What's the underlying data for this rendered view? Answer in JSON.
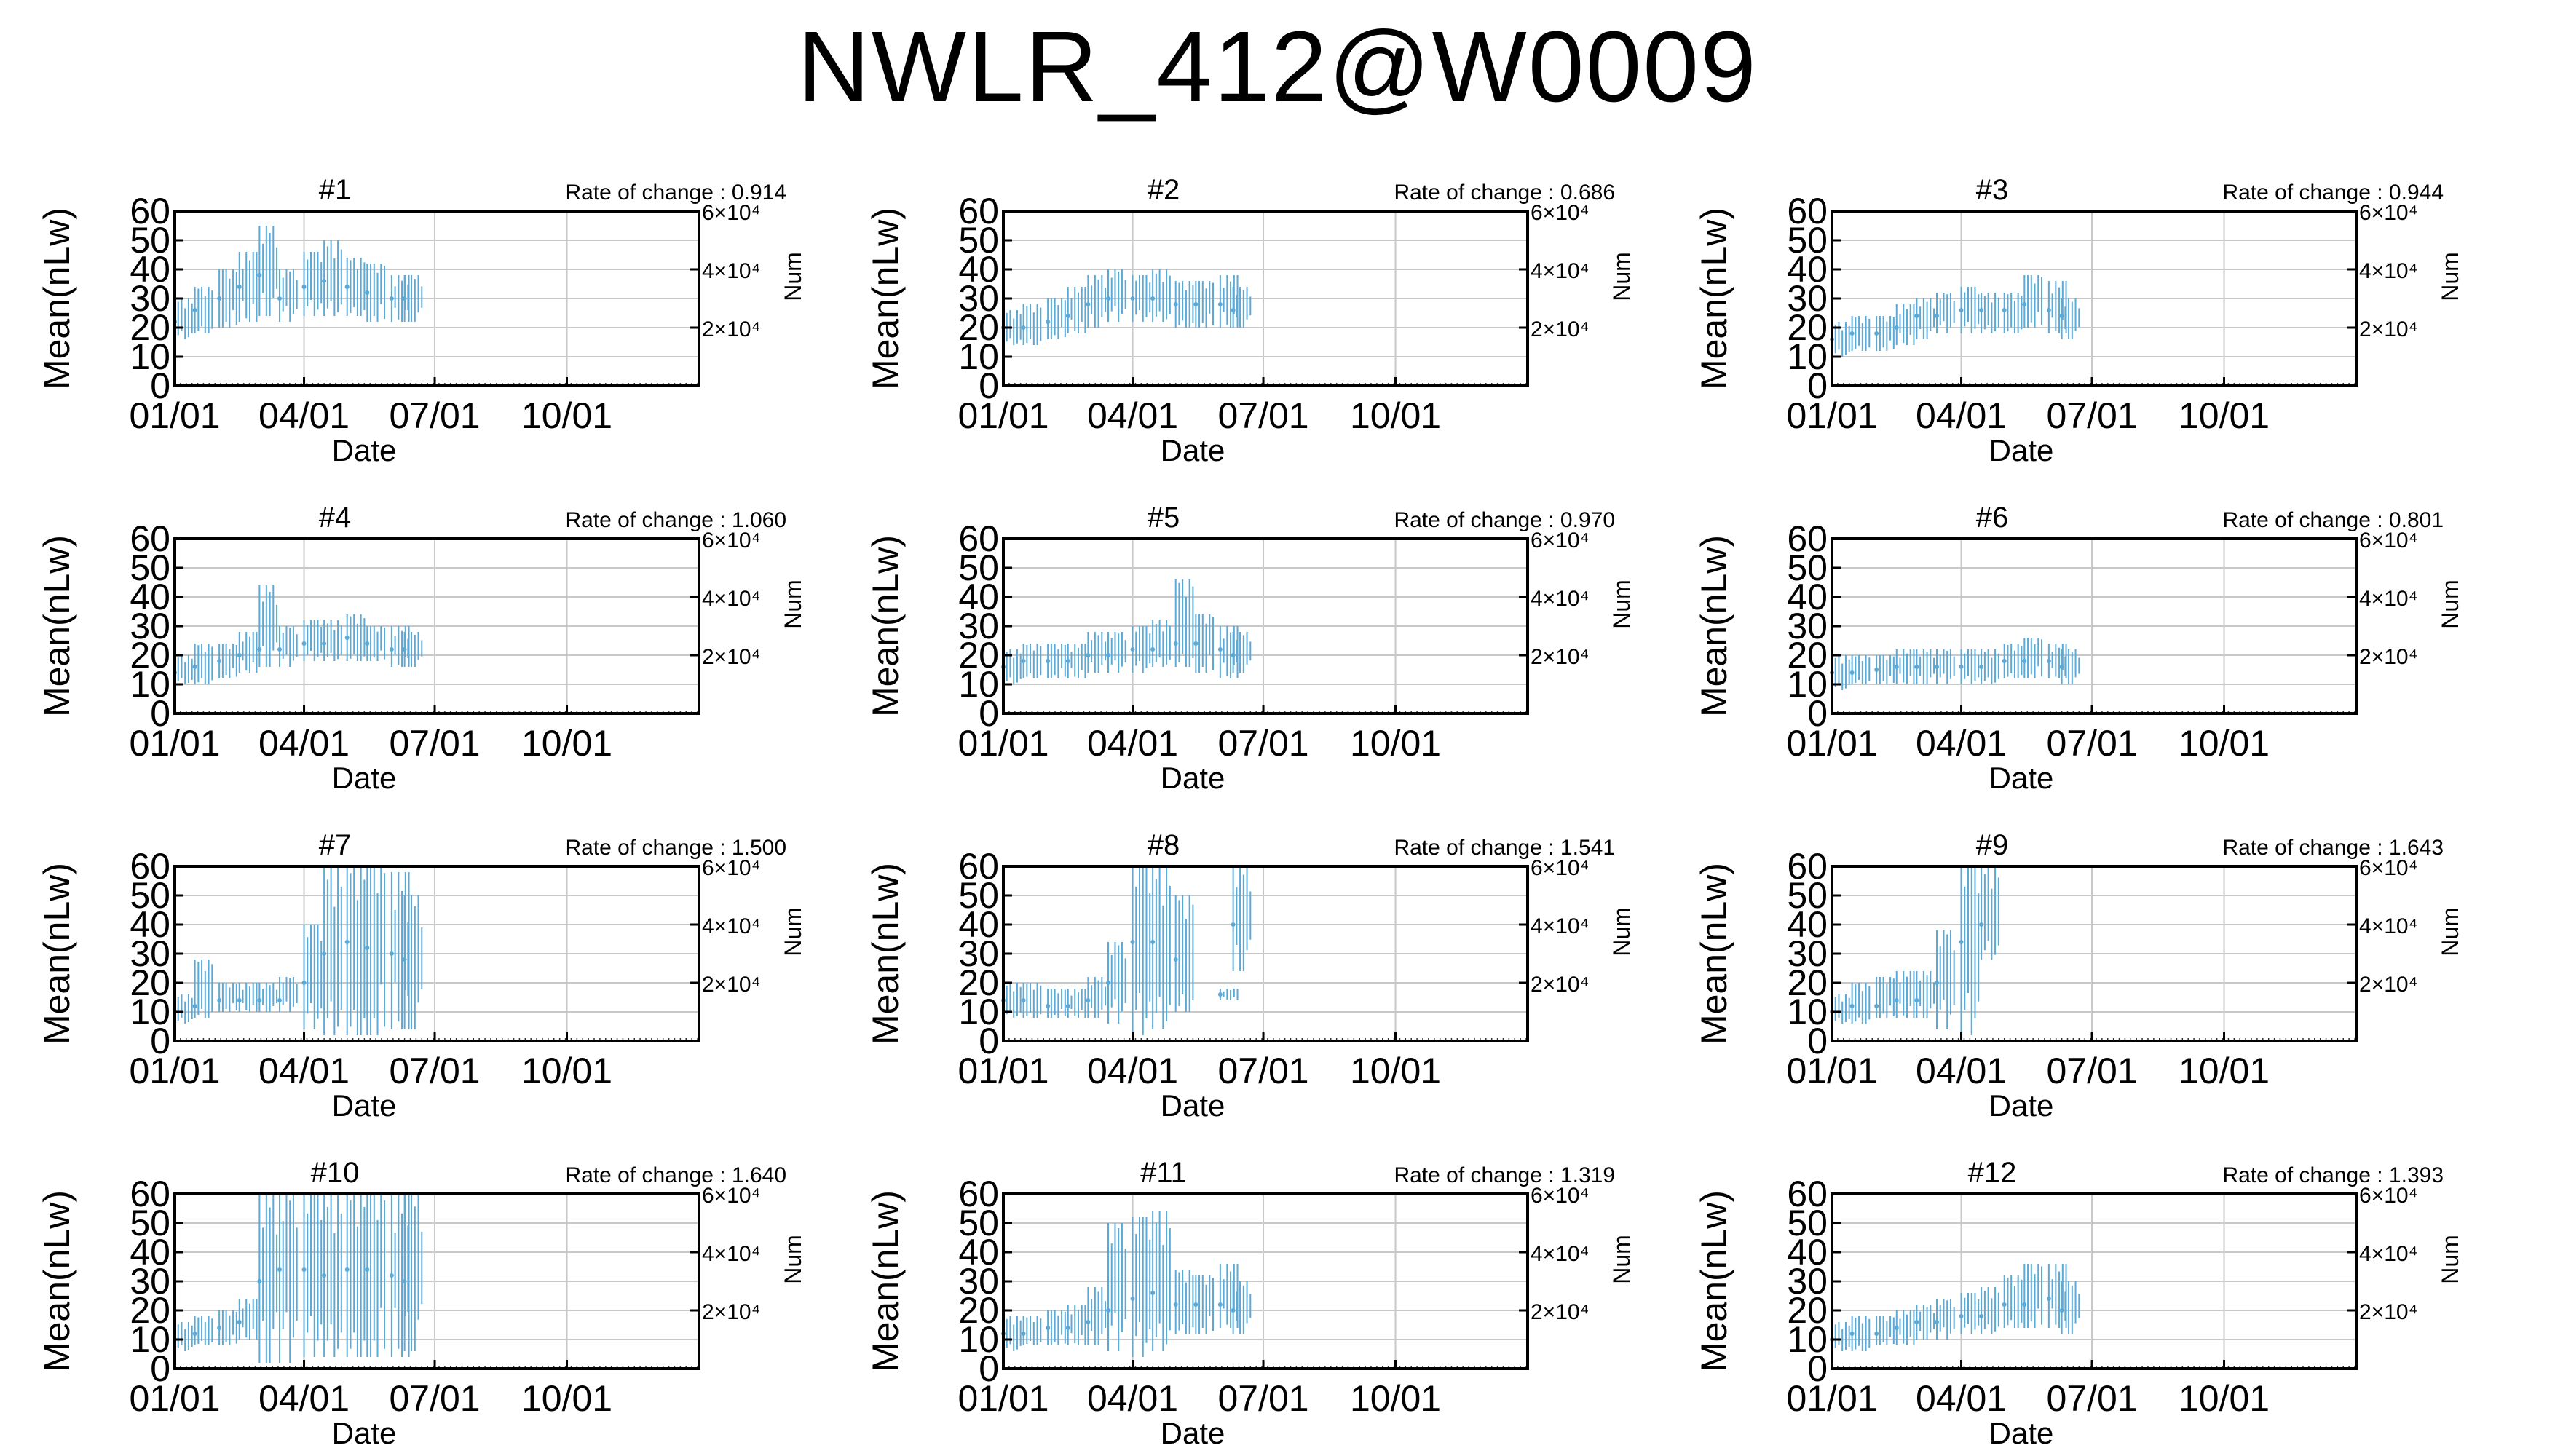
{
  "page": {
    "title": "NWLR_412@W0009"
  },
  "colors": {
    "data": "#5aa9d6",
    "grid": "#c8c8c8",
    "frame": "#000000"
  },
  "chart_data": [
    {
      "type": "scatter",
      "title": "#1",
      "rate_label": "Rate of change : 0.914",
      "xlabel": "Date",
      "ylabel": "Mean(nLw)",
      "y2label": "Num",
      "ylim": [
        0,
        60
      ],
      "y2ticks": [
        "2×10⁴",
        "4×10⁴",
        "6×10⁴"
      ],
      "xticks": [
        "01/01",
        "04/01",
        "07/01",
        "10/01"
      ],
      "grid": true,
      "x": [
        "01/01",
        "01/15",
        "02/01",
        "02/15",
        "03/01",
        "03/15",
        "04/01",
        "04/15",
        "05/01",
        "05/15",
        "06/01",
        "06/10"
      ],
      "y": [
        22,
        26,
        30,
        34,
        38,
        30,
        34,
        36,
        34,
        32,
        30,
        30
      ],
      "y_low": [
        16,
        18,
        20,
        22,
        24,
        22,
        24,
        24,
        24,
        22,
        22,
        22
      ],
      "y_high": [
        30,
        34,
        40,
        46,
        55,
        40,
        46,
        50,
        44,
        42,
        38,
        38
      ]
    },
    {
      "type": "scatter",
      "title": "#2",
      "rate_label": "Rate of change : 0.686",
      "xlabel": "Date",
      "ylabel": "Mean(nLw)",
      "y2label": "Num",
      "ylim": [
        0,
        60
      ],
      "y2ticks": [
        "2×10⁴",
        "4×10⁴",
        "6×10⁴"
      ],
      "xticks": [
        "01/01",
        "04/01",
        "07/01",
        "10/01"
      ],
      "grid": true,
      "x": [
        "01/01",
        "01/15",
        "02/01",
        "02/15",
        "03/01",
        "03/15",
        "04/01",
        "04/15",
        "05/01",
        "05/15",
        "06/01",
        "06/10"
      ],
      "y": [
        20,
        20,
        22,
        24,
        28,
        30,
        30,
        30,
        28,
        28,
        28,
        26
      ],
      "y_low": [
        14,
        14,
        16,
        18,
        20,
        22,
        22,
        22,
        20,
        20,
        20,
        20
      ],
      "y_high": [
        26,
        28,
        30,
        34,
        38,
        40,
        38,
        40,
        36,
        36,
        38,
        34
      ]
    },
    {
      "type": "scatter",
      "title": "#3",
      "rate_label": "Rate of change : 0.944",
      "xlabel": "Date",
      "ylabel": "Mean(nLw)",
      "y2label": "Num",
      "ylim": [
        0,
        60
      ],
      "y2ticks": [
        "2×10⁴",
        "4×10⁴",
        "6×10⁴"
      ],
      "xticks": [
        "01/01",
        "04/01",
        "07/01",
        "10/01"
      ],
      "grid": true,
      "x": [
        "01/01",
        "01/15",
        "02/01",
        "02/15",
        "03/01",
        "03/15",
        "04/01",
        "04/15",
        "05/01",
        "05/15",
        "06/01",
        "06/10"
      ],
      "y": [
        16,
        18,
        18,
        20,
        24,
        24,
        26,
        26,
        26,
        28,
        26,
        24
      ],
      "y_low": [
        10,
        12,
        12,
        14,
        16,
        18,
        18,
        18,
        18,
        20,
        18,
        16
      ],
      "y_high": [
        22,
        24,
        24,
        28,
        30,
        32,
        34,
        32,
        32,
        38,
        36,
        30
      ]
    },
    {
      "type": "scatter",
      "title": "#4",
      "rate_label": "Rate of change : 1.060",
      "xlabel": "Date",
      "ylabel": "Mean(nLw)",
      "y2label": "Num",
      "ylim": [
        0,
        60
      ],
      "y2ticks": [
        "2×10⁴",
        "4×10⁴",
        "6×10⁴"
      ],
      "xticks": [
        "01/01",
        "04/01",
        "07/01",
        "10/01"
      ],
      "grid": true,
      "x": [
        "01/01",
        "01/15",
        "02/01",
        "02/15",
        "03/01",
        "03/15",
        "04/01",
        "04/15",
        "05/01",
        "05/15",
        "06/01",
        "06/10"
      ],
      "y": [
        14,
        16,
        18,
        20,
        22,
        22,
        24,
        24,
        26,
        24,
        22,
        22
      ],
      "y_low": [
        10,
        10,
        12,
        14,
        16,
        16,
        18,
        18,
        18,
        18,
        16,
        16
      ],
      "y_high": [
        20,
        24,
        24,
        28,
        44,
        30,
        32,
        32,
        34,
        30,
        30,
        28
      ]
    },
    {
      "type": "scatter",
      "title": "#5",
      "rate_label": "Rate of change : 0.970",
      "xlabel": "Date",
      "ylabel": "Mean(nLw)",
      "y2label": "Num",
      "ylim": [
        0,
        60
      ],
      "y2ticks": [
        "2×10⁴",
        "4×10⁴",
        "6×10⁴"
      ],
      "xticks": [
        "01/01",
        "04/01",
        "07/01",
        "10/01"
      ],
      "grid": true,
      "x": [
        "01/01",
        "01/15",
        "02/01",
        "02/15",
        "03/01",
        "03/15",
        "04/01",
        "04/15",
        "05/01",
        "05/15",
        "06/01",
        "06/10"
      ],
      "y": [
        16,
        18,
        18,
        18,
        20,
        20,
        22,
        22,
        24,
        24,
        22,
        20
      ],
      "y_low": [
        10,
        12,
        12,
        12,
        14,
        14,
        14,
        16,
        16,
        14,
        12,
        14
      ],
      "y_high": [
        22,
        24,
        24,
        24,
        28,
        28,
        30,
        32,
        46,
        34,
        30,
        28
      ]
    },
    {
      "type": "scatter",
      "title": "#6",
      "rate_label": "Rate of change : 0.801",
      "xlabel": "Date",
      "ylabel": "Mean(nLw)",
      "y2label": "Num",
      "ylim": [
        0,
        60
      ],
      "y2ticks": [
        "2×10⁴",
        "4×10⁴",
        "6×10⁴"
      ],
      "xticks": [
        "01/01",
        "04/01",
        "07/01",
        "10/01"
      ],
      "grid": true,
      "x": [
        "01/01",
        "01/15",
        "02/01",
        "02/15",
        "03/01",
        "03/15",
        "04/01",
        "04/15",
        "05/01",
        "05/15",
        "06/01",
        "06/10"
      ],
      "y": [
        14,
        14,
        15,
        16,
        16,
        16,
        16,
        16,
        18,
        18,
        18,
        16
      ],
      "y_low": [
        8,
        10,
        10,
        10,
        10,
        10,
        10,
        10,
        12,
        12,
        12,
        10
      ],
      "y_high": [
        20,
        20,
        20,
        22,
        22,
        22,
        22,
        22,
        24,
        26,
        24,
        22
      ]
    },
    {
      "type": "scatter",
      "title": "#7",
      "rate_label": "Rate of change : 1.500",
      "xlabel": "Date",
      "ylabel": "Mean(nLw)",
      "y2label": "Num",
      "ylim": [
        0,
        60
      ],
      "y2ticks": [
        "2×10⁴",
        "4×10⁴",
        "6×10⁴"
      ],
      "xticks": [
        "01/01",
        "04/01",
        "07/01",
        "10/01"
      ],
      "grid": true,
      "x": [
        "01/01",
        "01/15",
        "02/01",
        "02/15",
        "03/01",
        "03/15",
        "04/01",
        "04/15",
        "05/01",
        "05/15",
        "06/01",
        "06/10"
      ],
      "y": [
        10,
        12,
        14,
        14,
        14,
        14,
        20,
        30,
        34,
        32,
        30,
        28
      ],
      "y_low": [
        6,
        8,
        10,
        10,
        10,
        10,
        4,
        2,
        2,
        2,
        4,
        4
      ],
      "y_high": [
        16,
        28,
        20,
        20,
        20,
        22,
        40,
        60,
        60,
        60,
        58,
        50
      ]
    },
    {
      "type": "scatter",
      "title": "#8",
      "rate_label": "Rate of change : 1.541",
      "xlabel": "Date",
      "ylabel": "Mean(nLw)",
      "y2label": "Num",
      "ylim": [
        0,
        60
      ],
      "y2ticks": [
        "2×10⁴",
        "4×10⁴",
        "6×10⁴"
      ],
      "xticks": [
        "01/01",
        "04/01",
        "07/01",
        "10/01"
      ],
      "grid": true,
      "x": [
        "01/01",
        "01/15",
        "02/01",
        "02/15",
        "03/01",
        "03/15",
        "04/01",
        "04/15",
        "05/01",
        "05/15",
        "06/01",
        "06/10"
      ],
      "y": [
        14,
        14,
        12,
        12,
        14,
        20,
        34,
        34,
        28,
        null,
        16,
        40
      ],
      "y_low": [
        8,
        8,
        8,
        8,
        8,
        6,
        2,
        4,
        10,
        null,
        14,
        24
      ],
      "y_high": [
        20,
        20,
        18,
        18,
        22,
        34,
        60,
        60,
        50,
        null,
        18,
        60
      ]
    },
    {
      "type": "scatter",
      "title": "#9",
      "rate_label": "Rate of change : 1.643",
      "xlabel": "Date",
      "ylabel": "Mean(nLw)",
      "y2label": "Num",
      "ylim": [
        0,
        60
      ],
      "y2ticks": [
        "2×10⁴",
        "4×10⁴",
        "6×10⁴"
      ],
      "xticks": [
        "01/01",
        "04/01",
        "07/01",
        "10/01"
      ],
      "grid": true,
      "x": [
        "01/01",
        "01/15",
        "02/01",
        "02/15",
        "03/01",
        "03/15",
        "04/01",
        "04/15"
      ],
      "y": [
        10,
        12,
        12,
        14,
        14,
        20,
        34,
        40
      ],
      "y_low": [
        6,
        6,
        8,
        8,
        8,
        4,
        2,
        28
      ],
      "y_high": [
        16,
        20,
        22,
        24,
        24,
        38,
        60,
        60
      ]
    },
    {
      "type": "scatter",
      "title": "#10",
      "rate_label": "Rate of change : 1.640",
      "xlabel": "Date",
      "ylabel": "Mean(nLw)",
      "y2label": "Num",
      "ylim": [
        0,
        60
      ],
      "y2ticks": [
        "2×10⁴",
        "4×10⁴",
        "6×10⁴"
      ],
      "xticks": [
        "01/01",
        "04/01",
        "07/01",
        "10/01"
      ],
      "grid": true,
      "x": [
        "01/01",
        "01/15",
        "02/01",
        "02/15",
        "03/01",
        "03/15",
        "04/01",
        "04/15",
        "05/01",
        "05/15",
        "06/01",
        "06/10"
      ],
      "y": [
        10,
        12,
        14,
        16,
        30,
        34,
        34,
        32,
        34,
        34,
        32,
        30
      ],
      "y_low": [
        6,
        8,
        8,
        10,
        2,
        2,
        4,
        4,
        4,
        4,
        4,
        6
      ],
      "y_high": [
        16,
        18,
        20,
        24,
        60,
        60,
        60,
        60,
        60,
        60,
        60,
        60
      ]
    },
    {
      "type": "scatter",
      "title": "#11",
      "rate_label": "Rate of change : 1.319",
      "xlabel": "Date",
      "ylabel": "Mean(nLw)",
      "y2label": "Num",
      "ylim": [
        0,
        60
      ],
      "y2ticks": [
        "2×10⁴",
        "4×10⁴",
        "6×10⁴"
      ],
      "xticks": [
        "01/01",
        "04/01",
        "07/01",
        "10/01"
      ],
      "grid": true,
      "x": [
        "01/01",
        "01/15",
        "02/01",
        "02/15",
        "03/01",
        "03/15",
        "04/01",
        "04/15",
        "05/01",
        "05/15",
        "06/01",
        "06/10"
      ],
      "y": [
        12,
        12,
        14,
        14,
        16,
        20,
        24,
        26,
        22,
        22,
        22,
        20
      ],
      "y_low": [
        6,
        8,
        8,
        8,
        8,
        6,
        4,
        6,
        12,
        12,
        14,
        12
      ],
      "y_high": [
        18,
        18,
        20,
        22,
        28,
        50,
        52,
        54,
        34,
        32,
        36,
        30
      ]
    },
    {
      "type": "scatter",
      "title": "#12",
      "rate_label": "Rate of change : 1.393",
      "xlabel": "Date",
      "ylabel": "Mean(nLw)",
      "y2label": "Num",
      "ylim": [
        0,
        60
      ],
      "y2ticks": [
        "2×10⁴",
        "4×10⁴",
        "6×10⁴"
      ],
      "xticks": [
        "01/01",
        "04/01",
        "07/01",
        "10/01"
      ],
      "grid": true,
      "x": [
        "01/01",
        "01/15",
        "02/01",
        "02/15",
        "03/01",
        "03/15",
        "04/01",
        "04/15",
        "05/01",
        "05/15",
        "06/01",
        "06/10"
      ],
      "y": [
        10,
        12,
        12,
        14,
        16,
        16,
        18,
        18,
        22,
        22,
        24,
        20
      ],
      "y_low": [
        6,
        6,
        8,
        8,
        10,
        10,
        12,
        12,
        14,
        14,
        14,
        12
      ],
      "y_high": [
        16,
        18,
        18,
        20,
        22,
        24,
        26,
        28,
        32,
        36,
        36,
        30
      ]
    }
  ]
}
